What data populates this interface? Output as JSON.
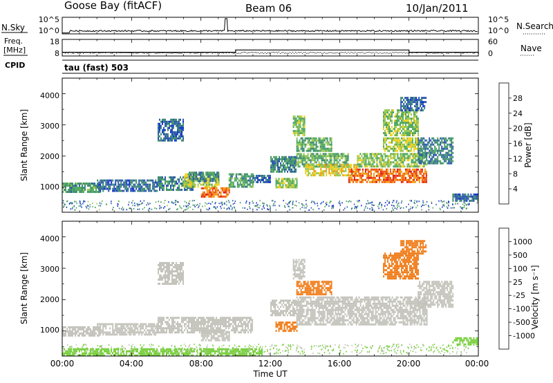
{
  "header": {
    "station": "Goose Bay (fitACF)",
    "beam": "Beam 06",
    "date": "10/Jan/2011"
  },
  "noise_panel": {
    "left_label": "N.Sky",
    "right_label": "N.Search",
    "left_ticks": [
      "10^5",
      "10^0"
    ],
    "right_ticks": [
      "10^5",
      "10^0"
    ]
  },
  "freq_panel": {
    "left_label_1": "Freq.",
    "left_label_2": "[MHz]",
    "right_label": "Nave",
    "left_ticks": [
      "18",
      "8"
    ],
    "right_ticks": [
      "60",
      "0"
    ],
    "cpid_label": "CPID",
    "cpid_text": "tau (fast) 503"
  },
  "power_panel": {
    "ylabel": "Slant Range [km]",
    "yticks": [
      "4000",
      "3000",
      "2000",
      "1000"
    ],
    "colorbar_label": "Power [dB]",
    "colorbar_ticks": [
      "28",
      "24",
      "20",
      "16",
      "12",
      "8",
      "4"
    ]
  },
  "velocity_panel": {
    "ylabel": "Slant Range [km]",
    "yticks": [
      "4000",
      "3000",
      "2000",
      "1000"
    ],
    "colorbar_label": "Velocity [m s⁻¹]",
    "colorbar_ticks": [
      "1000",
      "500",
      "100",
      "25",
      "-25",
      "-100",
      "-500",
      "-1000"
    ]
  },
  "xaxis": {
    "label": "Time UT",
    "ticks": [
      "00:00",
      "04:00",
      "08:00",
      "12:00",
      "16:00",
      "20:00",
      "00:00"
    ]
  },
  "colors": {
    "power_scale": [
      "#1030d0",
      "#2b55b0",
      "#3c8a72",
      "#52a860",
      "#98c850",
      "#f2d020",
      "#f29a10",
      "#f05010",
      "#e01a10"
    ],
    "velocity_scale": [
      "#1a3aa0",
      "#2e7a6a",
      "#3cb04a",
      "#7ad040",
      "#c4c4bc",
      "#c4c4bc",
      "#f4b030",
      "#f08020",
      "#e05010",
      "#e01010"
    ]
  },
  "chart_data": [
    {
      "type": "heatmap",
      "name": "power",
      "x_unit": "hours UT",
      "xlim": [
        0,
        24
      ],
      "ylim": [
        200,
        4500
      ],
      "zlim": [
        0,
        30
      ],
      "regions": [
        {
          "t": [
            0.0,
            2.2
          ],
          "r": [
            850,
            1150
          ],
          "z": 10
        },
        {
          "t": [
            2.0,
            5.5
          ],
          "r": [
            900,
            1250
          ],
          "z": 6
        },
        {
          "t": [
            5.5,
            7.0
          ],
          "r": [
            2500,
            3200
          ],
          "z": 6
        },
        {
          "t": [
            5.5,
            7.5
          ],
          "r": [
            950,
            1350
          ],
          "z": 8
        },
        {
          "t": [
            7.0,
            9.0
          ],
          "r": [
            1000,
            1450
          ],
          "z": 16
        },
        {
          "t": [
            7.3,
            9.0
          ],
          "r": [
            1200,
            1500
          ],
          "z": 8
        },
        {
          "t": [
            8.0,
            9.6
          ],
          "r": [
            700,
            1000
          ],
          "z": 24
        },
        {
          "t": [
            9.6,
            11.0
          ],
          "r": [
            1000,
            1450
          ],
          "z": 10
        },
        {
          "t": [
            11.0,
            12.0
          ],
          "r": [
            1150,
            1400
          ],
          "z": 6
        },
        {
          "t": [
            12.0,
            13.5
          ],
          "r": [
            1500,
            2000
          ],
          "z": 8
        },
        {
          "t": [
            12.3,
            13.5
          ],
          "r": [
            1000,
            1300
          ],
          "z": 14
        },
        {
          "t": [
            13.3,
            14.0
          ],
          "r": [
            2700,
            3300
          ],
          "z": 14
        },
        {
          "t": [
            13.5,
            15.5
          ],
          "r": [
            2200,
            2600
          ],
          "z": 12
        },
        {
          "t": [
            13.5,
            16.5
          ],
          "r": [
            1700,
            2100
          ],
          "z": 12
        },
        {
          "t": [
            14.0,
            17.0
          ],
          "r": [
            1400,
            1750
          ],
          "z": 18
        },
        {
          "t": [
            16.5,
            21.0
          ],
          "r": [
            1200,
            1600
          ],
          "z": 24
        },
        {
          "t": [
            17.0,
            21.0
          ],
          "r": [
            1650,
            2100
          ],
          "z": 14
        },
        {
          "t": [
            18.5,
            20.5
          ],
          "r": [
            2200,
            2600
          ],
          "z": 16
        },
        {
          "t": [
            18.5,
            20.5
          ],
          "r": [
            2700,
            3500
          ],
          "z": 14
        },
        {
          "t": [
            20.5,
            22.5
          ],
          "r": [
            1800,
            2600
          ],
          "z": 8
        },
        {
          "t": [
            19.5,
            21.0
          ],
          "r": [
            3500,
            3900
          ],
          "z": 6
        },
        {
          "t": [
            22.5,
            24.0
          ],
          "r": [
            550,
            800
          ],
          "z": 6
        }
      ]
    },
    {
      "type": "heatmap",
      "name": "velocity",
      "x_unit": "hours UT",
      "xlim": [
        0,
        24
      ],
      "ylim": [
        200,
        4500
      ],
      "zlim": [
        -1000,
        1000
      ],
      "regions": [
        {
          "t": [
            0.0,
            2.2
          ],
          "r": [
            850,
            1150
          ],
          "v": 0
        },
        {
          "t": [
            2.0,
            5.5
          ],
          "r": [
            900,
            1250
          ],
          "v": 0
        },
        {
          "t": [
            5.5,
            7.0
          ],
          "r": [
            2500,
            3200
          ],
          "v": 0
        },
        {
          "t": [
            5.5,
            11.0
          ],
          "r": [
            950,
            1450
          ],
          "v": 0
        },
        {
          "t": [
            8.0,
            9.6
          ],
          "r": [
            700,
            1000
          ],
          "v": 0
        },
        {
          "t": [
            12.3,
            13.5
          ],
          "r": [
            1000,
            1300
          ],
          "v": -150
        },
        {
          "t": [
            12.0,
            13.5
          ],
          "r": [
            1500,
            2000
          ],
          "v": 0
        },
        {
          "t": [
            13.3,
            14.0
          ],
          "r": [
            2700,
            3300
          ],
          "v": 0
        },
        {
          "t": [
            13.5,
            15.5
          ],
          "r": [
            2200,
            2600
          ],
          "v": -200
        },
        {
          "t": [
            13.5,
            21.0
          ],
          "r": [
            1200,
            2100
          ],
          "v": 0
        },
        {
          "t": [
            18.5,
            20.5
          ],
          "r": [
            2700,
            3500
          ],
          "v": -200
        },
        {
          "t": [
            19.5,
            21.0
          ],
          "r": [
            3500,
            3900
          ],
          "v": -200
        },
        {
          "t": [
            20.5,
            22.5
          ],
          "r": [
            1800,
            2600
          ],
          "v": 0
        },
        {
          "t": [
            22.5,
            24.0
          ],
          "r": [
            550,
            800
          ],
          "v": 60
        },
        {
          "t": [
            0.0,
            11.5
          ],
          "r": [
            250,
            450
          ],
          "v": 60
        }
      ]
    },
    {
      "type": "line",
      "name": "noise",
      "x": [
        0,
        0.5,
        6,
        9.3,
        9.45,
        9.6,
        12,
        16,
        20,
        24
      ],
      "values": [
        0.2,
        0.8,
        0.8,
        0.8,
        4.8,
        0.8,
        0.8,
        0.8,
        0.8,
        0.8
      ],
      "ylim": [
        0,
        5
      ]
    },
    {
      "type": "line",
      "name": "frequency",
      "x": [
        0,
        10,
        10,
        20,
        20,
        24
      ],
      "values": [
        10,
        10,
        11.5,
        11.5,
        10,
        10
      ],
      "ylim": [
        8,
        18
      ]
    }
  ]
}
